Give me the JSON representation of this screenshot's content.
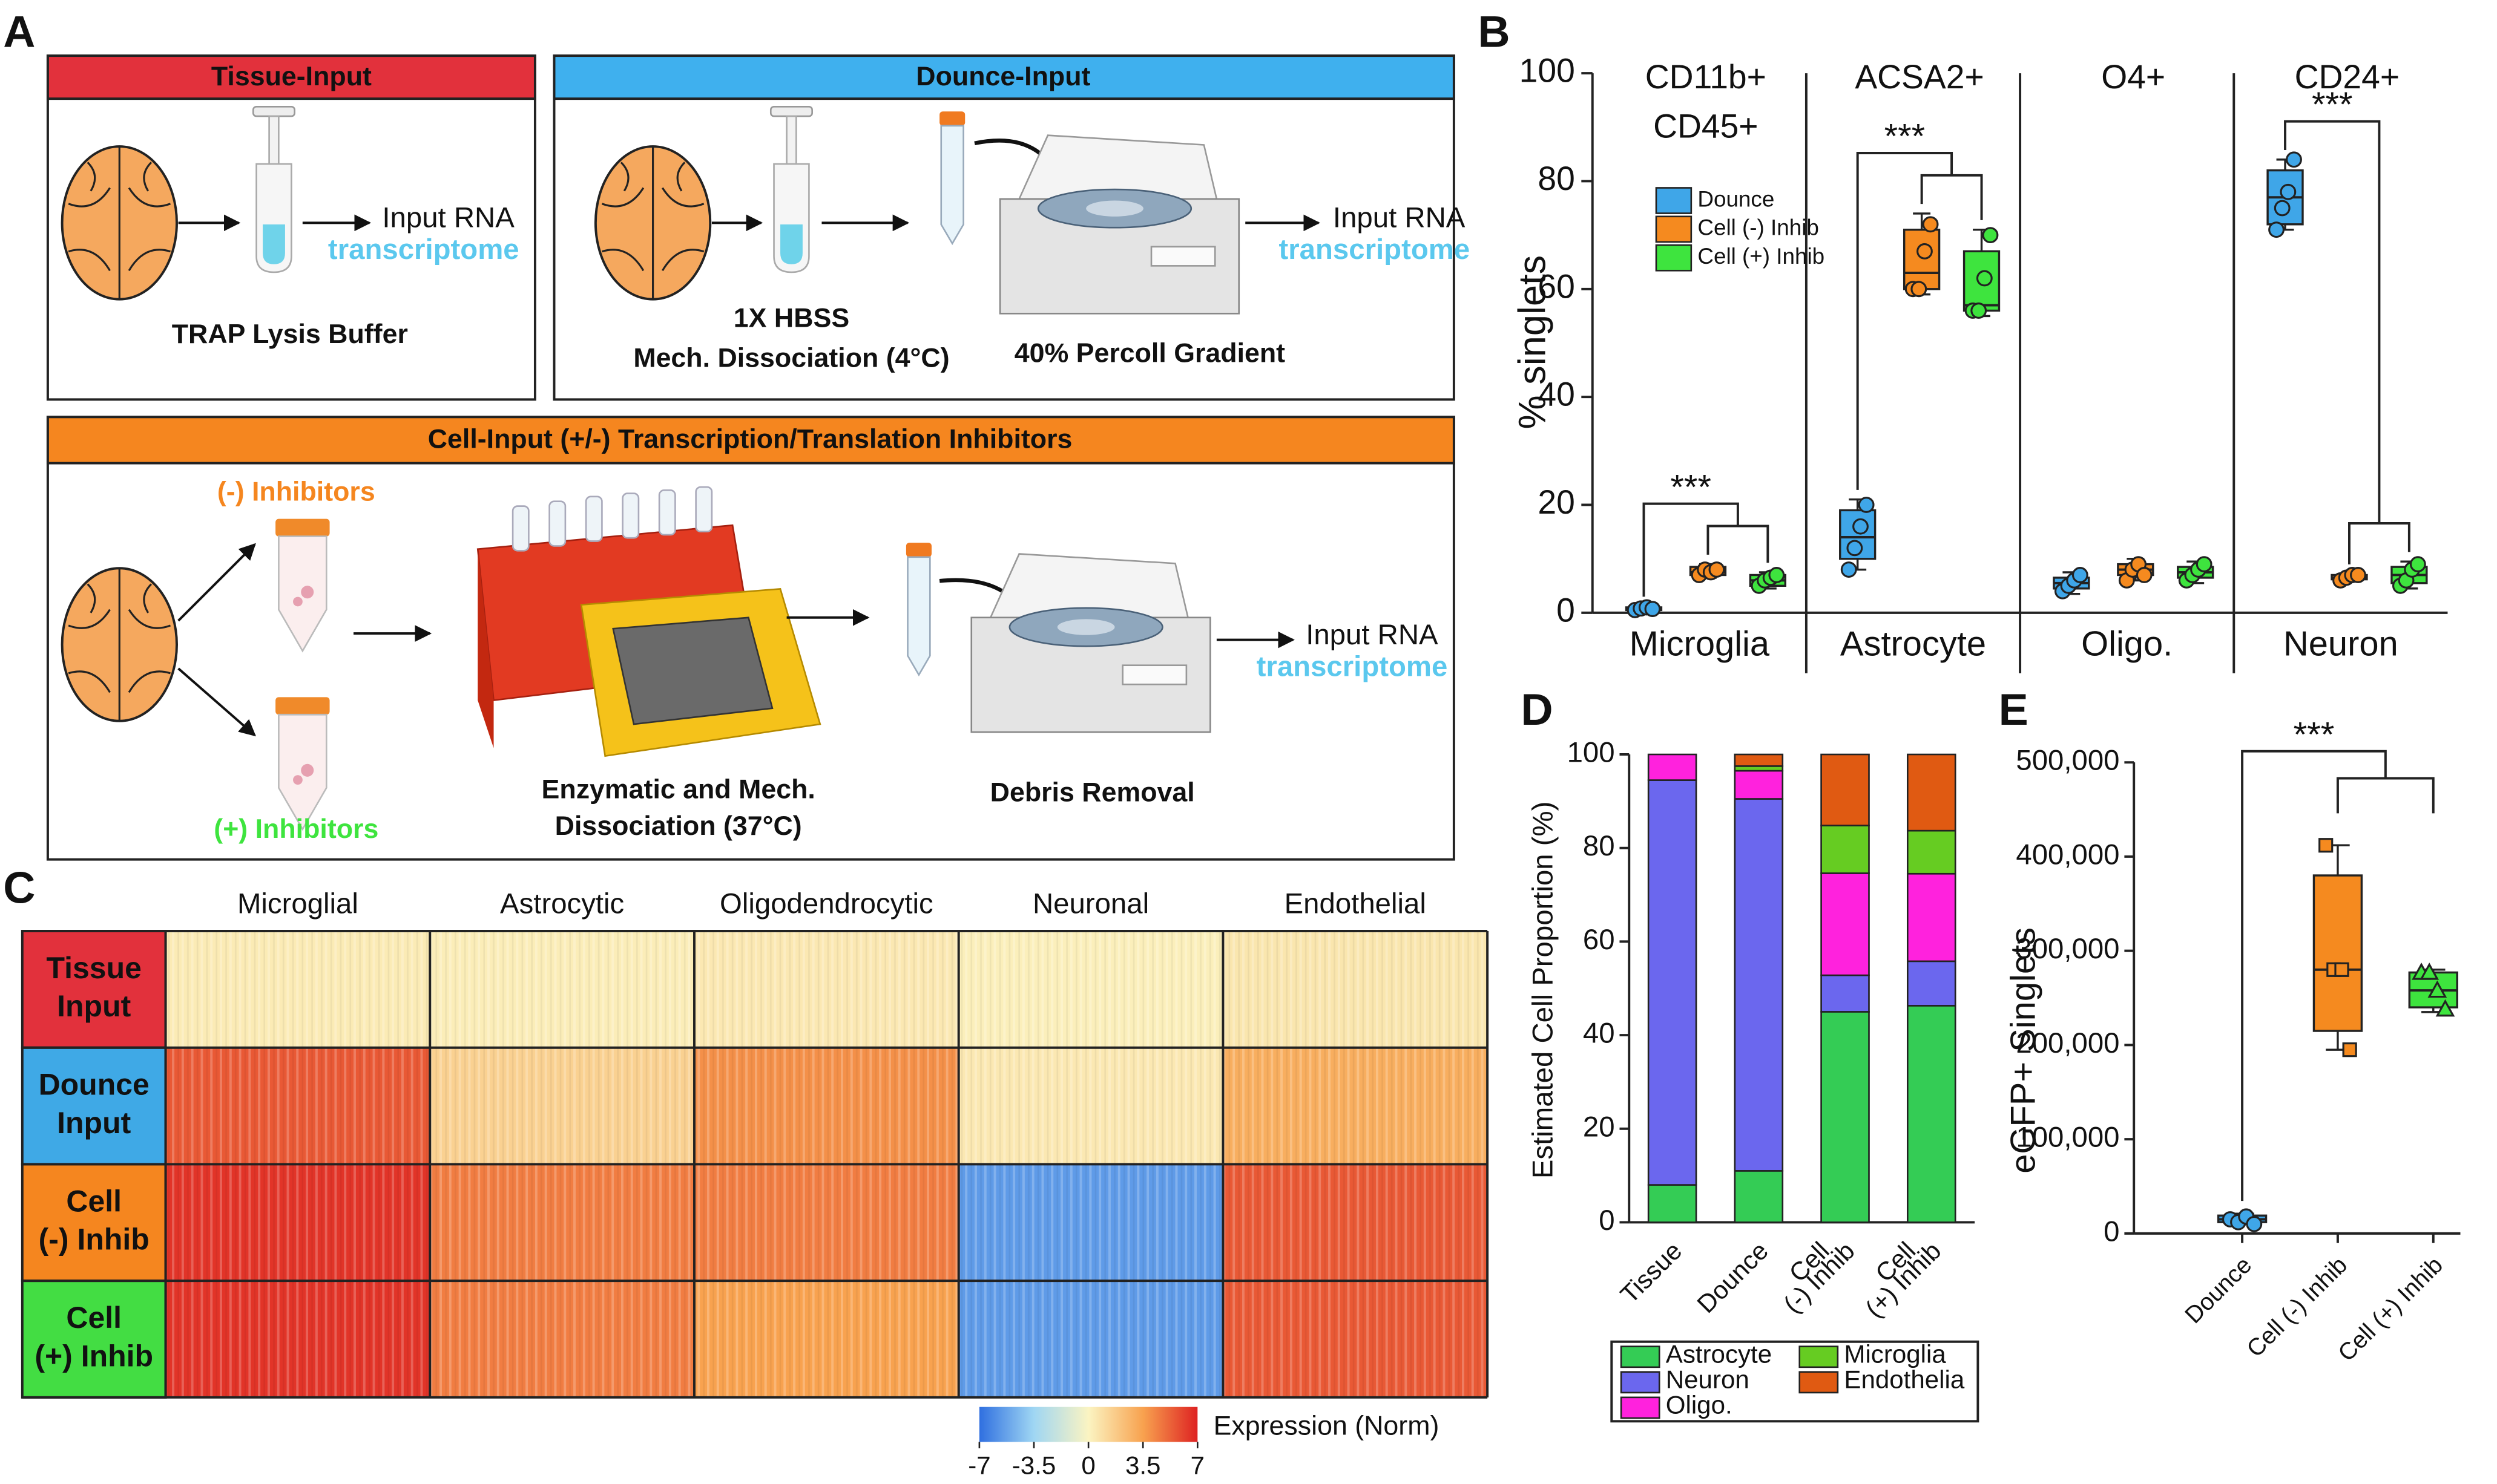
{
  "panel_labels": [
    "A",
    "B",
    "C",
    "D",
    "E"
  ],
  "diagram": {
    "tissue_input": {
      "title": "Tissue-Input",
      "step": "TRAP Lysis Buffer",
      "output": "Input RNA",
      "output_sub": "transcriptome"
    },
    "dounce_input": {
      "title": "Dounce-Input",
      "step1": "1X HBSS",
      "step1b": "Mech. Dissociation (4°C)",
      "step2": "40% Percoll Gradient",
      "output": "Input RNA",
      "output_sub": "transcriptome"
    },
    "cell_input": {
      "title": "Cell-Input (+/-) Transcription/Translation Inhibitors",
      "minus": "(-) Inhibitors",
      "plus": "(+) Inhibitors",
      "step1": "Enzymatic and Mech.",
      "step1b": "Dissociation (37°C)",
      "step2": "Debris Removal",
      "output": "Input RNA",
      "output_sub": "transcriptome"
    }
  },
  "chart_data": [
    {
      "type": "box",
      "group_labels": [
        [
          "CD11b+",
          "CD45+"
        ],
        [
          "ACSA2+"
        ],
        [
          "O4+"
        ],
        [
          "CD24+"
        ]
      ],
      "categories": [
        "Microglia",
        "Astrocyte",
        "Oligo.",
        "Neuron"
      ],
      "y_label": "% singlets",
      "ylim": [
        0,
        100
      ],
      "yticks": [
        0,
        20,
        40,
        60,
        80,
        100
      ],
      "annotations": [
        "***",
        "***",
        null,
        "***"
      ],
      "series": [
        {
          "name": "Dounce",
          "color": "#3fa6e8",
          "boxes": [
            [
              0.3,
              0.5,
              0.8,
              1.0,
              1.2
            ],
            [
              8,
              10,
              14,
              19,
              21
            ],
            [
              3.5,
              4.5,
              5.5,
              6.5,
              7.5
            ],
            [
              71,
              72,
              77,
              82,
              84
            ]
          ],
          "points": [
            [
              0.5,
              0.8,
              1,
              0.7
            ],
            [
              8,
              12,
              16,
              20
            ],
            [
              4,
              5,
              6,
              7
            ],
            [
              71,
              75,
              78,
              84
            ]
          ]
        },
        {
          "name": "Cell (-) Inhib",
          "color": "#f58a1f",
          "boxes": [
            [
              6.5,
              7,
              7.5,
              8.5,
              9
            ],
            [
              59,
              60,
              63,
              71,
              74
            ],
            [
              6,
              7,
              8,
              9,
              10
            ],
            [
              6,
              6.2,
              6.5,
              7,
              7.2
            ]
          ],
          "points": [
            [
              7,
              8,
              7.5,
              8
            ],
            [
              60,
              60,
              67,
              72
            ],
            [
              6,
              8,
              9,
              7
            ],
            [
              6,
              6.5,
              7,
              7
            ]
          ]
        },
        {
          "name": "Cell (+) Inhib",
          "color": "#3ee43e",
          "boxes": [
            [
              4.5,
              5,
              6,
              7,
              7.5
            ],
            [
              55,
              56,
              57,
              67,
              71
            ],
            [
              5.5,
              6.5,
              7.5,
              8.5,
              9.5
            ],
            [
              4.5,
              5.5,
              7,
              8.5,
              9.5
            ]
          ],
          "points": [
            [
              5,
              6,
              6.5,
              7
            ],
            [
              56,
              56,
              62,
              70
            ],
            [
              6,
              7,
              8,
              9
            ],
            [
              5,
              6,
              8,
              9
            ]
          ]
        }
      ]
    },
    {
      "type": "heatmap",
      "columns": [
        "Microglial",
        "Astrocytic",
        "Oligodendrocytic",
        "Neuronal",
        "Endothelial"
      ],
      "rows": [
        [
          "Tissue",
          "Input"
        ],
        [
          "Dounce",
          "Input"
        ],
        [
          "Cell",
          "(-) Inhib"
        ],
        [
          "Cell",
          "(+) Inhib"
        ]
      ],
      "row_colors": [
        "#e2313c",
        "#3fa9e6",
        "#f5861f",
        "#43dd43"
      ],
      "values": [
        [
          0.4,
          0.3,
          0.5,
          0.2,
          0.6
        ],
        [
          5.5,
          1.5,
          4,
          0.5,
          3
        ],
        [
          6.5,
          4.5,
          4.5,
          -5.5,
          5.5
        ],
        [
          6.5,
          4.5,
          3.5,
          -5.5,
          5.5
        ]
      ],
      "clim": [
        -7,
        7
      ],
      "colormap": [
        "#2f6fe0",
        "#9fd6f3",
        "#fbf4c2",
        "#f8a24f",
        "#de2222"
      ],
      "colorbar_ticks": [
        -7,
        -3.5,
        0,
        3.5,
        7
      ],
      "colorbar_label": "Expression (Norm)"
    },
    {
      "type": "stacked_bar",
      "categories": [
        [
          "Tissue"
        ],
        [
          "Dounce"
        ],
        [
          "Cell",
          "(-) Inhib"
        ],
        [
          "Cell",
          "(+) Inhib"
        ]
      ],
      "y_label": "Estimated Cell Proportion (%)",
      "ylim": [
        0,
        100
      ],
      "yticks": [
        0,
        20,
        40,
        60,
        80,
        100
      ],
      "series": [
        {
          "name": "Astrocyte",
          "color": "#34cc55",
          "values": [
            8,
            11,
            45,
            46.3
          ]
        },
        {
          "name": "Neuron",
          "color": "#6b67ee",
          "values": [
            86.5,
            79.5,
            7.8,
            9.5
          ]
        },
        {
          "name": "Oligo.",
          "color": "#ff22dd",
          "values": [
            5.5,
            6,
            21.8,
            18.7
          ]
        },
        {
          "name": "Microglia",
          "color": "#66cc22",
          "values": [
            0,
            1,
            10.2,
            9.2
          ]
        },
        {
          "name": "Endothelia",
          "color": "#e05a12",
          "values": [
            0,
            2.5,
            15.2,
            16.3
          ]
        }
      ]
    },
    {
      "type": "box",
      "categories": [
        "Dounce",
        "Cell (-) Inhib",
        "Cell (+) Inhib"
      ],
      "colors": [
        "#3fa6e8",
        "#f58a1f",
        "#3ee43e"
      ],
      "markers": [
        "circle",
        "square",
        "triangle"
      ],
      "y_label": "eGFP+ Singlets",
      "ylim": [
        0,
        500000
      ],
      "yticks": [
        0,
        {
          "value": 100000,
          "label": "100,000"
        },
        {
          "value": 200000,
          "label": "200,000"
        },
        {
          "value": 300000,
          "label": "300,000"
        },
        {
          "value": 400000,
          "label": "400,000"
        },
        {
          "value": 500000,
          "label": "500,000"
        }
      ],
      "annotations": [
        "***"
      ],
      "boxes": [
        [
          10000,
          12000,
          15000,
          19000,
          21000
        ],
        [
          195000,
          215000,
          280000,
          380000,
          412000
        ],
        [
          235000,
          240000,
          258000,
          277000,
          280000
        ]
      ],
      "points": [
        [
          15000,
          12000,
          18000,
          10000
        ],
        [
          412000,
          280000,
          280000,
          195000
        ],
        [
          277000,
          277000,
          258000,
          238000
        ]
      ]
    }
  ]
}
